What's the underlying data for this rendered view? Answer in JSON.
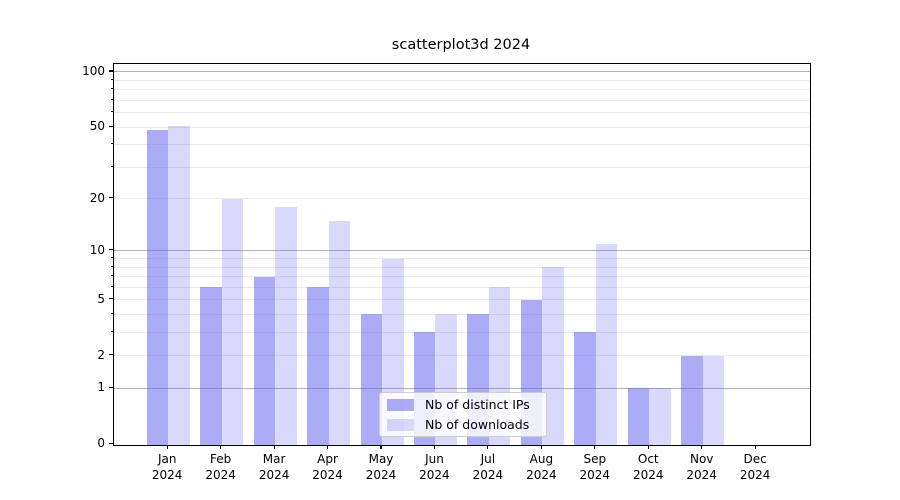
{
  "chart_data": {
    "type": "bar",
    "title": "scatterplot3d 2024",
    "categories": [
      "Jan",
      "Feb",
      "Mar",
      "Apr",
      "May",
      "Jun",
      "Jul",
      "Aug",
      "Sep",
      "Oct",
      "Nov",
      "Dec"
    ],
    "year_label": "2024",
    "series": [
      {
        "name": "Nb of distinct IPs",
        "color": "#6666ee",
        "alpha": 0.55,
        "values": [
          48,
          6,
          7,
          6,
          4,
          3,
          4,
          5,
          3,
          1,
          2,
          0
        ]
      },
      {
        "name": "Nb of downloads",
        "color": "#6666ee",
        "alpha": 0.25,
        "values": [
          51,
          20,
          18,
          15,
          9,
          4,
          6,
          8,
          11,
          1,
          2,
          0
        ]
      }
    ],
    "yscale": "log1p",
    "yticks": [
      100,
      50,
      20,
      10,
      5,
      2,
      1,
      0
    ],
    "ylim": [
      0,
      111
    ],
    "grid": true,
    "legend_position": "lower center",
    "colors": {
      "bar_base": "#6666ee",
      "major_grid": "#b2b2b2",
      "minor_grid": "#e9e9e9",
      "spine": "#000000",
      "legend_border": "#cccccc",
      "background": "#ffffff"
    }
  }
}
